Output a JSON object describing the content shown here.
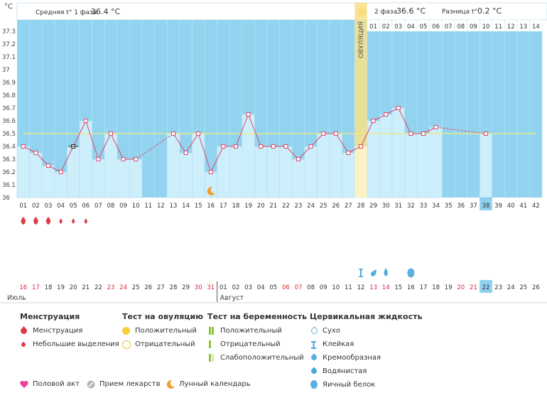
{
  "header": {
    "phase1_label": "Средняя t° 1 фаза",
    "phase1_value": "36.4 °C",
    "phase2_label": "2 фаза",
    "phase2_value": "36.6 °C",
    "diff_label": "Разница t°",
    "diff_value": "0.2 °C",
    "unit": "°C",
    "ovulation_label": "ОВУЛЯЦИЯ"
  },
  "chart_data": {
    "type": "line",
    "cycle_days": [
      "01",
      "02",
      "03",
      "04",
      "05",
      "06",
      "07",
      "08",
      "09",
      "10",
      "11",
      "12",
      "13",
      "14",
      "15",
      "16",
      "17",
      "18",
      "19",
      "20",
      "21",
      "22",
      "23",
      "24",
      "25",
      "26",
      "27",
      "28",
      "29",
      "30",
      "31",
      "32",
      "33",
      "34",
      "35",
      "36",
      "37",
      "38",
      "39",
      "40",
      "41",
      "42"
    ],
    "temperatures": [
      36.4,
      36.35,
      36.25,
      36.2,
      36.4,
      36.6,
      36.3,
      36.5,
      36.3,
      36.3,
      null,
      null,
      36.5,
      36.35,
      36.5,
      36.2,
      36.4,
      36.4,
      36.65,
      36.4,
      36.4,
      36.4,
      36.3,
      36.4,
      36.5,
      36.5,
      36.35,
      36.4,
      36.6,
      36.65,
      36.7,
      36.5,
      36.5,
      36.55,
      null,
      null,
      null,
      36.5,
      null,
      null,
      null,
      null
    ],
    "average_line": 36.5,
    "ylim": [
      36.0,
      37.3
    ],
    "yticks": [
      "37.3",
      "37.2",
      "37.1",
      "37",
      "36.9",
      "36.8",
      "36.7",
      "36.6",
      "36.5",
      "36.4",
      "36.3",
      "36.2",
      "36.1",
      "36"
    ],
    "ovulation_day": "28",
    "phase2_days": [
      "01",
      "02",
      "03",
      "04",
      "05",
      "06",
      "07",
      "08",
      "09",
      "10",
      "11",
      "12",
      "13",
      "14"
    ],
    "highlighted_day": "38",
    "calendar_dates": [
      "16",
      "17",
      "18",
      "19",
      "20",
      "21",
      "22",
      "23",
      "24",
      "25",
      "26",
      "27",
      "28",
      "29",
      "30",
      "31",
      "01",
      "02",
      "03",
      "04",
      "05",
      "06",
      "07",
      "08",
      "09",
      "10",
      "11",
      "12",
      "13",
      "14",
      "15",
      "16",
      "17",
      "18",
      "19",
      "20",
      "21",
      "22",
      "23",
      "24",
      "25",
      "26"
    ],
    "weekend_indices": [
      0,
      1,
      7,
      8,
      14,
      15,
      21,
      22,
      28,
      29,
      35,
      36
    ],
    "month_start_label": "Июль",
    "month_mid_label": "Август",
    "menstruation_large_days": [
      "01",
      "02",
      "03"
    ],
    "menstruation_small_days": [
      "04",
      "05",
      "06"
    ],
    "fluid_sticky_day": "28",
    "fluid_creamy_day": "29",
    "fluid_watery_day": "30",
    "fluid_eggwhite_day": "32",
    "moon_day": "16"
  },
  "legend": {
    "menstruation": {
      "title": "Менструация",
      "items": [
        "Менструация",
        "Небольшие выделения"
      ]
    },
    "ovulation_test": {
      "title": "Тест на овуляцию",
      "items": [
        "Положительный",
        "Отрицательный"
      ]
    },
    "pregnancy_test": {
      "title": "Тест на беременность",
      "items": [
        "Положительный",
        "Отрицательный",
        "Слабоположительный"
      ]
    },
    "cervical": {
      "title": "Цервикальная жидкость",
      "items": [
        "Сухо",
        "Клейкая",
        "Кремообразная",
        "Водянистая",
        "Яичный белок"
      ]
    },
    "bottom": [
      "Половой акт",
      "Прием лекарств",
      "Лунный календарь"
    ]
  },
  "colors": {
    "sky": "#a9dcf5",
    "plot_bg": "#92d4f0",
    "bar": "#cdeefb",
    "bar_stroke": "#9fd3ee",
    "line": "#e0476d",
    "avg_line": "#f3e97a",
    "ovulation": "#f7e08a",
    "weekend": "#e0243a"
  }
}
